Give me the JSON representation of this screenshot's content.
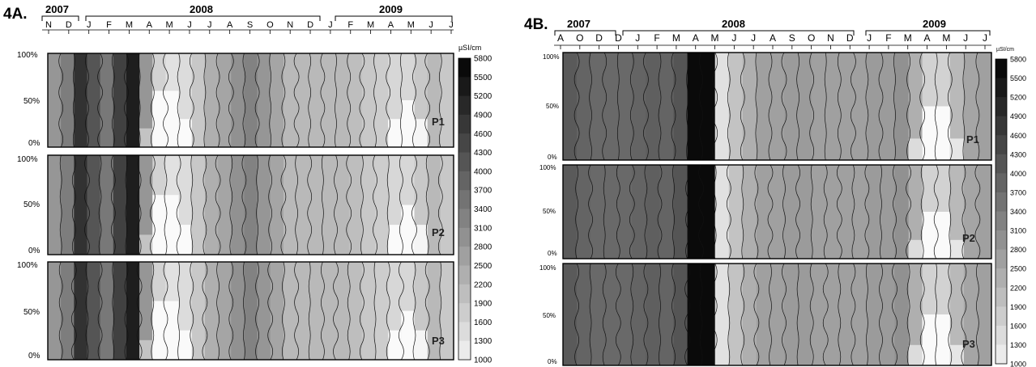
{
  "chart_data": [
    {
      "type": "heatmap",
      "figure_label": "4A.",
      "unit": "µSI/cm",
      "years": [
        "2007",
        "2008",
        "2009"
      ],
      "months": [
        "N",
        "D",
        "J",
        "F",
        "M",
        "A",
        "M",
        "J",
        "J",
        "A",
        "S",
        "O",
        "N",
        "D",
        "J",
        "F",
        "M",
        "A",
        "M",
        "J",
        "J"
      ],
      "y_ticks": [
        "100%",
        "50%",
        "0%"
      ],
      "colorbar_ticks": [
        "5800",
        "5500",
        "5200",
        "4900",
        "4600",
        "4300",
        "4000",
        "3700",
        "3400",
        "3100",
        "2800",
        "2500",
        "2200",
        "1900",
        "1600",
        "1300",
        "1000"
      ],
      "panels": [
        "P1",
        "P2",
        "P3"
      ],
      "column_conductivity": [
        3000,
        3500,
        5000,
        4300,
        3600,
        4700,
        5400,
        3000,
        1800,
        1500,
        1600,
        2000,
        2500,
        2700,
        3100,
        3400,
        3000,
        2700,
        2300,
        2300,
        2300,
        2300,
        2300,
        2200,
        2000,
        1900,
        1700,
        1700,
        2000,
        2300,
        2000
      ],
      "shallow_low_zone": [
        0,
        0,
        0,
        0,
        0,
        0,
        0,
        0.2,
        0.6,
        0.6,
        0.3,
        0,
        0,
        0,
        0,
        0,
        0,
        0,
        0,
        0,
        0,
        0,
        0,
        0,
        0,
        0,
        0.3,
        0.5,
        0.3,
        0,
        0
      ]
    },
    {
      "type": "heatmap",
      "figure_label": "4B.",
      "unit": "µSI/cm",
      "years": [
        "2007",
        "2008",
        "2009"
      ],
      "months": [
        "A",
        "O",
        "D",
        "D",
        "J",
        "F",
        "M",
        "A",
        "M",
        "J",
        "J",
        "A",
        "S",
        "O",
        "N",
        "D",
        "J",
        "F",
        "M",
        "A",
        "M",
        "J",
        "J"
      ],
      "y_ticks": [
        "100%",
        "50%",
        "0%"
      ],
      "y_ticks_p2": [
        "100%",
        "50%",
        "0%"
      ],
      "colorbar_ticks": [
        "5800",
        "5500",
        "5200",
        "4900",
        "4600",
        "4300",
        "4000",
        "3700",
        "3400",
        "3100",
        "2800",
        "2500",
        "2200",
        "1900",
        "1600",
        "1300",
        "1000"
      ],
      "panels": [
        "P1",
        "P2",
        "P3"
      ],
      "column_conductivity": [
        4200,
        4000,
        3900,
        3900,
        3900,
        4000,
        4100,
        4000,
        4300,
        5800,
        5800,
        1500,
        2100,
        2500,
        2800,
        2800,
        2900,
        2900,
        2800,
        2800,
        2800,
        2800,
        2900,
        2900,
        3100,
        2500,
        1800,
        1800,
        2300,
        2700,
        2800
      ],
      "shallow_low_zone": [
        0,
        0,
        0,
        0,
        0,
        0,
        0,
        0,
        0,
        0,
        0,
        0,
        0,
        0,
        0,
        0,
        0,
        0,
        0,
        0,
        0,
        0,
        0,
        0,
        0,
        0.2,
        0.5,
        0.5,
        0.2,
        0,
        0
      ]
    }
  ]
}
